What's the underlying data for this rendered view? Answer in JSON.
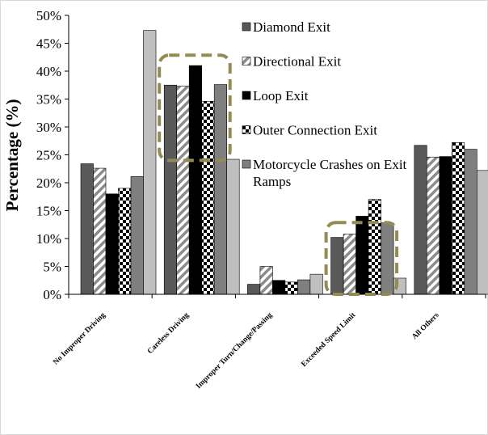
{
  "chart_data": {
    "type": "bar",
    "title": "",
    "xlabel": "",
    "ylabel": "Percentage (%)",
    "ylim": [
      0,
      50
    ],
    "yticks": [
      "0%",
      "5%",
      "10%",
      "15%",
      "20%",
      "25%",
      "30%",
      "35%",
      "40%",
      "45%",
      "50%"
    ],
    "grid": false,
    "legend_position": "top-right",
    "categories": [
      "No Improper Driving",
      "Careless Driving",
      "Improper Turn/Change/Passing",
      "Exceeded Speed Limit",
      "All Others"
    ],
    "series": [
      {
        "name": "Diamond Exit",
        "values": [
          23.4,
          37.5,
          1.8,
          10.2,
          26.7
        ]
      },
      {
        "name": "Directional Exit",
        "values": [
          22.6,
          37.3,
          5.0,
          10.8,
          24.6
        ]
      },
      {
        "name": "Loop Exit",
        "values": [
          18.0,
          41.0,
          2.5,
          14.0,
          24.7
        ]
      },
      {
        "name": "Outer Connection Exit",
        "values": [
          19.0,
          34.6,
          2.2,
          17.0,
          27.2
        ]
      },
      {
        "name": "Motorcycle Crashes on Exit Ramps",
        "values": [
          21.1,
          37.6,
          2.6,
          12.8,
          26.0
        ]
      },
      {
        "name": "",
        "values": [
          47.3,
          24.2,
          3.6,
          2.9,
          22.2
        ]
      }
    ],
    "colors": [
      "#595959",
      "#ffffff",
      "#000000",
      "#ffffff",
      "#7f7f7f",
      "#bfbfbf"
    ],
    "annotations": [
      {
        "type": "dashed-rounded-box",
        "category": "Careless Driving",
        "y_range": [
          24,
          42
        ],
        "color": "#948a54"
      },
      {
        "type": "dashed-rounded-box",
        "category": "Exceeded Speed Limit",
        "y_range": [
          0,
          12
        ],
        "color": "#948a54"
      }
    ]
  }
}
